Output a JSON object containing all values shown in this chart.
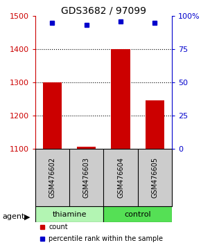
{
  "title": "GDS3682 / 97099",
  "samples": [
    "GSM476602",
    "GSM476603",
    "GSM476604",
    "GSM476605"
  ],
  "counts": [
    1300,
    1105,
    1400,
    1245
  ],
  "percentiles": [
    95,
    93,
    96,
    95
  ],
  "groups": [
    "thiamine",
    "thiamine",
    "control",
    "control"
  ],
  "group_labels": [
    "thiamine",
    "control"
  ],
  "group_colors": [
    "#b3f5b3",
    "#55e055"
  ],
  "left_ylim": [
    1100,
    1500
  ],
  "left_yticks": [
    1100,
    1200,
    1300,
    1400,
    1500
  ],
  "right_ylim": [
    0,
    100
  ],
  "right_yticks": [
    0,
    25,
    50,
    75,
    100
  ],
  "right_ticklabels": [
    "0",
    "25",
    "50",
    "75",
    "100%"
  ],
  "bar_color": "#cc0000",
  "dot_color": "#0000cc",
  "bar_width": 0.55,
  "left_axis_color": "#cc0000",
  "right_axis_color": "#0000cc",
  "background_plot": "#ffffff",
  "background_label": "#cccccc",
  "agent_label": "agent",
  "legend_count": "count",
  "legend_percentile": "percentile rank within the sample"
}
